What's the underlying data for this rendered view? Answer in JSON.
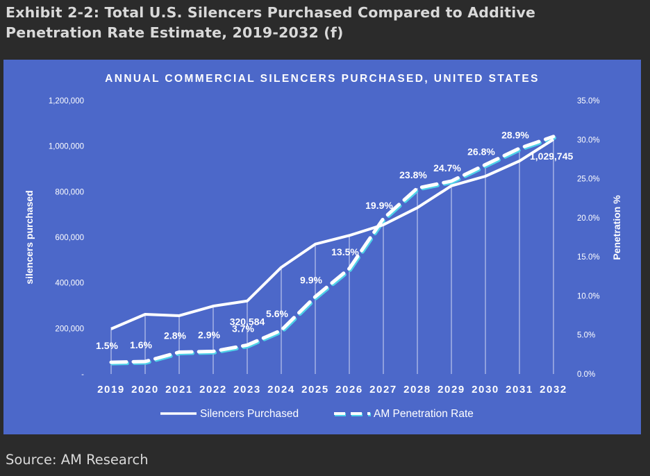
{
  "exhibit": {
    "title_line1": "Exhibit 2-2: Total U.S. Silencers Purchased Compared to Additive",
    "title_line2": "Penetration Rate Estimate, 2019-2032 (f)",
    "source": "Source: AM Research"
  },
  "colors": {
    "page_background": "#2b2b2b",
    "chart_background": "#4c68c9",
    "line": "#ffffff",
    "dash_accent": "#4fd1e8",
    "text": "#ffffff"
  },
  "chart_data": {
    "type": "line",
    "title": "ANNUAL COMMERCIAL SILENCERS PURCHASED, UNITED STATES",
    "xlabel": "",
    "ylabel": "silencers purchased",
    "y2label": "Penetration %",
    "categories": [
      "2019",
      "2020",
      "2021",
      "2022",
      "2023",
      "2024",
      "2025",
      "2026",
      "2027",
      "2028",
      "2029",
      "2030",
      "2031",
      "2032"
    ],
    "ylim": [
      0,
      1200000
    ],
    "y2lim": [
      0,
      35
    ],
    "yticks": [
      "-",
      "200,000",
      "400,000",
      "600,000",
      "800,000",
      "1,000,000",
      "1,200,000"
    ],
    "y2ticks": [
      "0.0%",
      "5.0%",
      "10.0%",
      "15.0%",
      "20.0%",
      "25.0%",
      "30.0%",
      "35.0%"
    ],
    "grid": "vertical drop lines",
    "legend": "bottom",
    "series": [
      {
        "name": "Silencers Purchased",
        "axis": "left",
        "style": "solid",
        "values": [
          198000,
          262000,
          256000,
          298000,
          320584,
          468000,
          570000,
          608000,
          655000,
          730000,
          826000,
          868000,
          935000,
          1029745
        ],
        "labels": [
          "",
          "",
          "",
          "",
          "320,584",
          "",
          "",
          "",
          "",
          "",
          "",
          "",
          "",
          "1,029,745"
        ]
      },
      {
        "name": "AM Penetration Rate",
        "axis": "right",
        "style": "dashed",
        "values": [
          1.5,
          1.6,
          2.8,
          2.9,
          3.7,
          5.6,
          9.9,
          13.5,
          19.9,
          23.8,
          24.7,
          26.8,
          28.9,
          30.4
        ],
        "labels": [
          "1.5%",
          "1.6%",
          "2.8%",
          "2.9%",
          "3.7%",
          "5.6%",
          "9.9%",
          "13.5%",
          "19.9%",
          "23.8%",
          "24.7%",
          "26.8%",
          "28.9%",
          ""
        ]
      }
    ]
  }
}
